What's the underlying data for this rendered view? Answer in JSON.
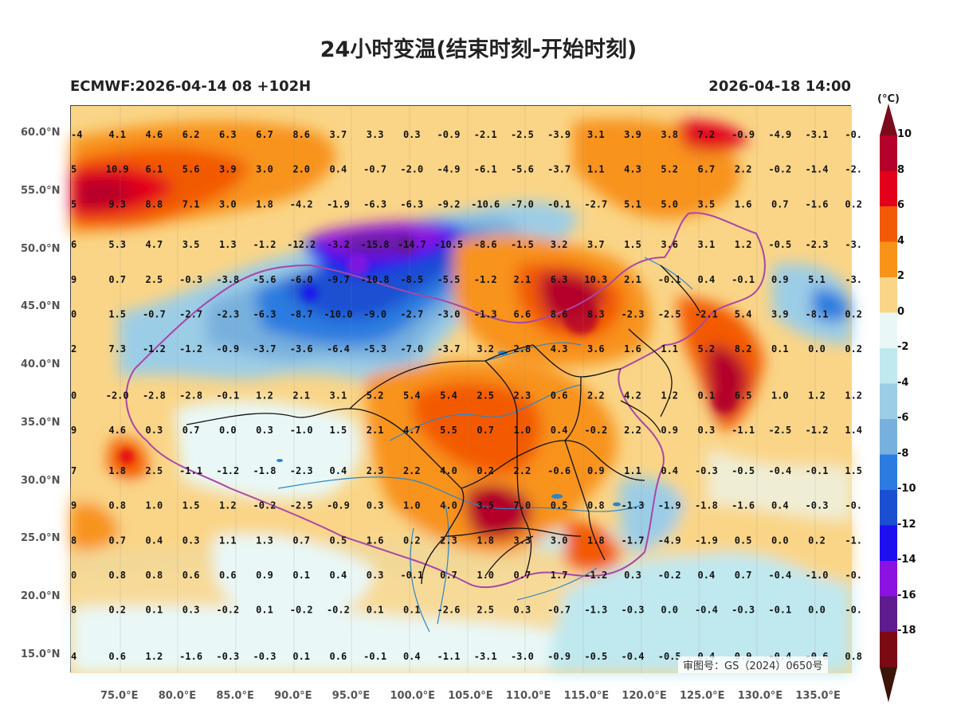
{
  "title": "24小时变温(结束时刻-开始时刻)",
  "model_info": "ECMWF:2026-04-14 08 +102H",
  "valid_time": "2026-04-18 14:00",
  "approval_number": "审图号：GS（2024）0650号",
  "legend": {
    "unit": "(°C)",
    "labels": [
      "10",
      "8",
      "6",
      "4",
      "2",
      "0",
      "-2",
      "-4",
      "-6",
      "-8",
      "-10",
      "-12",
      "-14",
      "-16",
      "-18"
    ],
    "colors": [
      "#b4002a",
      "#e2001a",
      "#f35a06",
      "#f8931a",
      "#fad587",
      "#e9f8f7",
      "#bfe8ef",
      "#9ccde6",
      "#78b0dd",
      "#2b7be0",
      "#1a4fd2",
      "#1e0ff0",
      "#8b12e0",
      "#5e1c8e",
      "#7c0a14"
    ],
    "top_arrow_color": "#7b0b1c",
    "bottom_arrow_color": "#3a1508"
  },
  "axes": {
    "lat_labels": [
      "60.0°N",
      "55.0°N",
      "50.0°N",
      "45.0°N",
      "40.0°N",
      "35.0°N",
      "30.0°N",
      "25.0°N",
      "20.0°N",
      "15.0°N"
    ],
    "lon_labels": [
      "75.0°E",
      "80.0°E",
      "85.0°E",
      "90.0°E",
      "95.0°E",
      "100.0°E",
      "105.0°E",
      "110.0°E",
      "115.0°E",
      "120.0°E",
      "125.0°E",
      "130.0°E",
      "135.0°E"
    ]
  },
  "grid_values": {
    "rows": [
      {
        "lat": 60.0,
        "values": [
          "-4",
          "4.1",
          "4.6",
          "6.2",
          "6.3",
          "6.7",
          "8.6",
          "3.7",
          "3.3",
          "0.3",
          "-0.9",
          "-2.1",
          "-2.5",
          "-3.9",
          "3.1",
          "3.9",
          "3.8",
          "7.2",
          "-0.9",
          "-4.9",
          "-3.1",
          "-0."
        ]
      },
      {
        "lat": 57.0,
        "values": [
          "5",
          "10.9",
          "6.1",
          "5.6",
          "3.9",
          "3.0",
          "2.0",
          "0.4",
          "-0.7",
          "-2.0",
          "-4.9",
          "-6.1",
          "-5.6",
          "-3.7",
          "1.1",
          "4.3",
          "5.2",
          "6.7",
          "2.2",
          "-0.2",
          "-1.4",
          "-2."
        ]
      },
      {
        "lat": 54.0,
        "values": [
          "5",
          "9.3",
          "8.8",
          "7.1",
          "3.0",
          "1.8",
          "-4.2",
          "-1.9",
          "-6.3",
          "-6.3",
          "-9.2",
          "-10.6",
          "-7.0",
          "-0.1",
          "-2.7",
          "5.1",
          "5.0",
          "3.5",
          "1.6",
          "0.7",
          "-1.6",
          "0.2"
        ]
      },
      {
        "lat": 50.5,
        "values": [
          "6",
          "5.3",
          "4.7",
          "3.5",
          "1.3",
          "-1.2",
          "-12.2",
          "-3.2",
          "-15.8",
          "-14.7",
          "-10.5",
          "-8.6",
          "-1.5",
          "3.2",
          "3.7",
          "1.5",
          "3.6",
          "3.1",
          "1.2",
          "-0.5",
          "-2.3",
          "-3."
        ]
      },
      {
        "lat": 47.5,
        "values": [
          "9",
          "0.7",
          "2.5",
          "-0.3",
          "-3.8",
          "-5.6",
          "-6.0",
          "-9.7",
          "-10.8",
          "-8.5",
          "-5.5",
          "-1.2",
          "2.1",
          "6.3",
          "10.3",
          "2.1",
          "-0.1",
          "0.4",
          "-0.1",
          "0.9",
          "5.1",
          "-3."
        ]
      },
      {
        "lat": 44.5,
        "values": [
          "0",
          "1.5",
          "-0.7",
          "-2.7",
          "-2.3",
          "-6.3",
          "-8.7",
          "-10.0",
          "-9.0",
          "-2.7",
          "-3.0",
          "-1.3",
          "6.6",
          "8.6",
          "8.3",
          "-2.3",
          "-2.5",
          "-2.1",
          "5.4",
          "3.9",
          "-8.1",
          "0.2"
        ]
      },
      {
        "lat": 41.5,
        "values": [
          "2",
          "7.3",
          "-1.2",
          "-1.2",
          "-0.9",
          "-3.7",
          "-3.6",
          "-6.4",
          "-5.3",
          "-7.0",
          "-3.7",
          "3.2",
          "2.8",
          "4.3",
          "3.6",
          "1.6",
          "1.1",
          "5.2",
          "8.2",
          "0.1",
          "0.0",
          "0.2"
        ]
      },
      {
        "lat": 37.5,
        "values": [
          "0",
          "-2.0",
          "-2.8",
          "-2.8",
          "-0.1",
          "1.2",
          "2.1",
          "3.1",
          "5.2",
          "5.4",
          "5.4",
          "2.5",
          "2.3",
          "0.6",
          "2.2",
          "4.2",
          "1.2",
          "0.1",
          "6.5",
          "1.0",
          "1.2",
          "1.2"
        ]
      },
      {
        "lat": 34.5,
        "values": [
          "9",
          "4.6",
          "0.3",
          "0.7",
          "0.0",
          "0.3",
          "-1.0",
          "1.5",
          "2.1",
          "4.7",
          "5.5",
          "0.7",
          "1.0",
          "0.4",
          "-0.2",
          "2.2",
          "0.9",
          "0.3",
          "-1.1",
          "-2.5",
          "-1.2",
          "1.4"
        ]
      },
      {
        "lat": 31.0,
        "values": [
          "7",
          "1.8",
          "2.5",
          "-1.1",
          "-1.2",
          "-1.8",
          "-2.3",
          "0.4",
          "2.3",
          "2.2",
          "4.0",
          "0.2",
          "2.2",
          "-0.6",
          "0.9",
          "1.1",
          "0.4",
          "-0.3",
          "-0.5",
          "-0.4",
          "-0.1",
          "1.5"
        ]
      },
      {
        "lat": 28.0,
        "values": [
          "9",
          "0.8",
          "1.0",
          "1.5",
          "1.2",
          "-0.2",
          "-2.5",
          "-0.9",
          "0.3",
          "1.0",
          "4.0",
          "3.5",
          "7.0",
          "0.5",
          "0.8",
          "-1.3",
          "-1.9",
          "-1.8",
          "-1.6",
          "0.4",
          "-0.3",
          "-0."
        ]
      },
      {
        "lat": 25.0,
        "values": [
          "8",
          "0.7",
          "0.4",
          "0.3",
          "1.1",
          "1.3",
          "0.7",
          "0.5",
          "1.6",
          "0.2",
          "2.3",
          "1.8",
          "3.3",
          "3.0",
          "1.8",
          "-1.7",
          "-4.9",
          "-1.9",
          "0.5",
          "0.0",
          "0.2",
          "-1."
        ]
      },
      {
        "lat": 22.0,
        "values": [
          "0",
          "0.8",
          "0.8",
          "0.6",
          "0.6",
          "0.9",
          "0.1",
          "0.4",
          "0.3",
          "-0.1",
          "0.7",
          "1.0",
          "0.7",
          "1.7",
          "-1.2",
          "0.3",
          "-0.2",
          "0.4",
          "0.7",
          "-0.4",
          "-1.0",
          "-0."
        ]
      },
      {
        "lat": 19.0,
        "values": [
          "8",
          "0.2",
          "0.1",
          "0.3",
          "-0.2",
          "0.1",
          "-0.2",
          "-0.2",
          "0.1",
          "0.1",
          "-2.6",
          "2.5",
          "0.3",
          "-0.7",
          "-1.3",
          "-0.3",
          "0.0",
          "-0.4",
          "-0.3",
          "-0.1",
          "0.0",
          "-0."
        ]
      },
      {
        "lat": 15.0,
        "values": [
          "4",
          "0.6",
          "1.2",
          "-1.6",
          "-0.3",
          "-0.3",
          "0.1",
          "0.6",
          "-0.1",
          "0.4",
          "-1.1",
          "-3.1",
          "-3.0",
          "-0.9",
          "-0.5",
          "-0.4",
          "-0.5",
          "0.4",
          "0.9",
          "-0.4",
          "-0.6",
          "0.8"
        ]
      }
    ]
  }
}
